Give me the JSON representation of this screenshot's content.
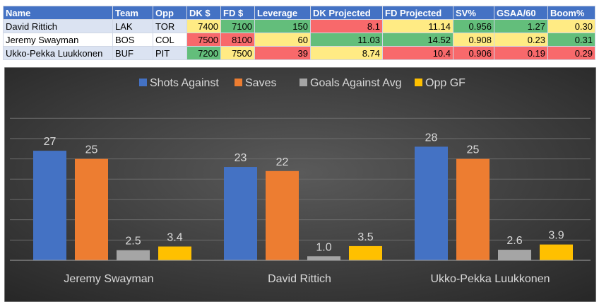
{
  "table": {
    "columns": [
      "Name",
      "Team",
      "Opp",
      "DK $",
      "FD $",
      "Leverage",
      "DK Projected",
      "FD Projected",
      "SV%",
      "GSAA/60",
      "Boom%"
    ],
    "rows": [
      {
        "cells": [
          "David Rittich",
          "LAK",
          "TOR",
          "7400",
          "7100",
          "150",
          "8.1",
          "11.14",
          "0.956",
          "1.27",
          "0.30"
        ],
        "fills": [
          "",
          "",
          "",
          "yellow",
          "green",
          "green",
          "red",
          "yellow",
          "green",
          "green",
          "yellow"
        ]
      },
      {
        "cells": [
          "Jeremy Swayman",
          "BOS",
          "COL",
          "7500",
          "8100",
          "60",
          "11.03",
          "14.52",
          "0.908",
          "0.23",
          "0.31"
        ],
        "fills": [
          "",
          "",
          "",
          "red",
          "red",
          "yellow",
          "green",
          "green",
          "yellow",
          "yellow",
          "green"
        ]
      },
      {
        "cells": [
          "Ukko-Pekka Luukkonen",
          "BUF",
          "PIT",
          "7200",
          "7500",
          "39",
          "8.74",
          "10.4",
          "0.906",
          "0.19",
          "0.29"
        ],
        "fills": [
          "",
          "",
          "",
          "green",
          "yellow",
          "red",
          "yellow",
          "red",
          "red",
          "red",
          "red"
        ]
      }
    ]
  },
  "colors": {
    "green": "#63be7b",
    "yellow": "#ffeb84",
    "red": "#f8696b",
    "header": "#4472c4",
    "chart_bg_center": "#5a5a5a",
    "chart_bg_edge": "#262626"
  },
  "chart_data": {
    "type": "bar",
    "title": "",
    "xlabel": "",
    "ylabel": "",
    "ylim": [
      0,
      38
    ],
    "legend_position": "top",
    "grid": true,
    "categories": [
      "Jeremy Swayman",
      "David Rittich",
      "Ukko-Pekka Luukkonen"
    ],
    "series": [
      {
        "name": "Shots Against",
        "color": "#4472c4",
        "values": [
          27,
          23,
          28
        ],
        "labels": [
          "27",
          "23",
          "28"
        ]
      },
      {
        "name": "Saves",
        "color": "#ed7d31",
        "values": [
          25,
          22,
          25
        ],
        "labels": [
          "25",
          "22",
          "25"
        ]
      },
      {
        "name": "Goals Against Avg",
        "color": "#a5a5a5",
        "values": [
          2.5,
          1.0,
          2.6
        ],
        "labels": [
          "2.5",
          "1.0",
          "2.6"
        ]
      },
      {
        "name": "Opp GF",
        "color": "#ffc000",
        "values": [
          3.4,
          3.5,
          3.9
        ],
        "labels": [
          "3.4",
          "3.5",
          "3.9"
        ]
      }
    ]
  }
}
